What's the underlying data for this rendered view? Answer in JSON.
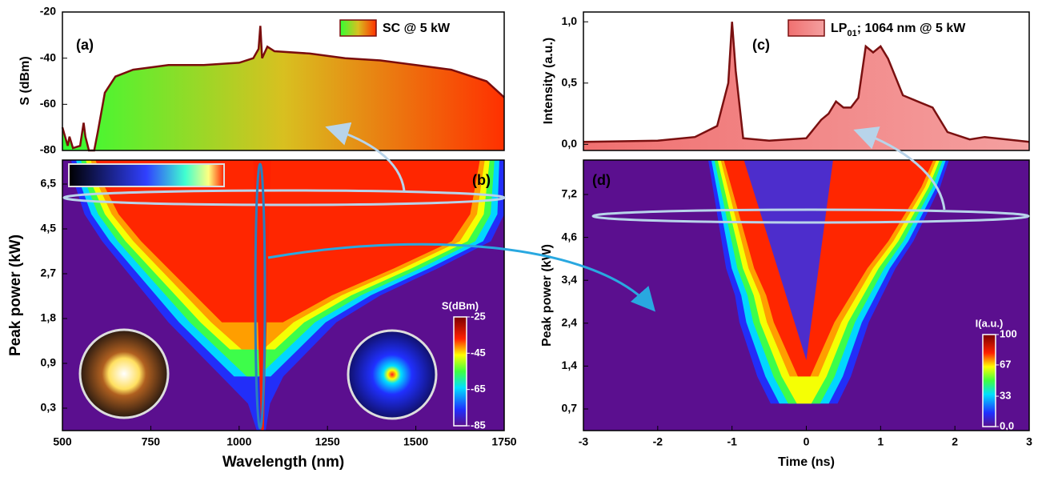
{
  "chart_data": [
    {
      "type": "area",
      "annotation": "(a)",
      "ylabel": "S (dBm)",
      "xlim": [
        500,
        1750
      ],
      "ylim": [
        -80,
        -20
      ],
      "yticks": [
        -80,
        -60,
        -40,
        -20
      ],
      "x": [
        500,
        515,
        520,
        530,
        550,
        560,
        565,
        575,
        590,
        600,
        620,
        650,
        700,
        800,
        900,
        1000,
        1040,
        1055,
        1060,
        1065,
        1080,
        1100,
        1200,
        1300,
        1400,
        1500,
        1600,
        1700,
        1750
      ],
      "series": [
        {
          "name": "SC @ 5 kW",
          "color": "#7a0d0d",
          "fill_colors": [
            "#33ff33",
            "#d8c020",
            "#ff3000"
          ],
          "values": [
            -70,
            -78,
            -74,
            -79,
            -78,
            -68,
            -74,
            -80,
            -80,
            -72,
            -55,
            -48,
            -45,
            -43,
            -43,
            -42,
            -40,
            -36,
            -26,
            -40,
            -35,
            -37,
            -38,
            -40,
            -41,
            -43,
            -45,
            -50,
            -57
          ]
        }
      ]
    },
    {
      "type": "heatmap",
      "annotation": "(b)",
      "xlabel": "Wavelength (nm)",
      "ylabel": "Peak power (kW)",
      "xlim": [
        500,
        1750
      ],
      "xticks": [
        500,
        750,
        1000,
        1250,
        1500,
        1750
      ],
      "y_categories": [
        "0,3",
        "0,9",
        "1,8",
        "2,7",
        "4,5",
        "6,5"
      ],
      "colorbar": {
        "label": "S(dBm)",
        "lim": [
          -85,
          -25
        ],
        "ticks": [
          -85,
          -65,
          -45,
          -25
        ]
      }
    },
    {
      "type": "area",
      "annotation": "(c)",
      "ylabel": "Intensity (a.u.)",
      "xlim": [
        -3,
        3
      ],
      "ylim": [
        -0.05,
        1.08
      ],
      "yticks": [
        {
          "value": 0,
          "label": "0,0"
        },
        {
          "value": 0.5,
          "label": "0,5"
        },
        {
          "value": 1,
          "label": "1,0"
        }
      ],
      "x": [
        -3,
        -2,
        -1.5,
        -1.2,
        -1.05,
        -1.0,
        -0.95,
        -0.85,
        -0.5,
        0,
        0.2,
        0.3,
        0.4,
        0.5,
        0.6,
        0.7,
        0.8,
        0.9,
        1.0,
        1.1,
        1.3,
        1.5,
        1.7,
        1.9,
        2.2,
        2.4,
        3
      ],
      "series": [
        {
          "name_parts": [
            "LP",
            "01",
            "; 1064 nm @ 5 kW"
          ],
          "color": "#7a1010",
          "fill_colors": [
            "#f07070",
            "#f4a0a0"
          ],
          "values": [
            0.02,
            0.03,
            0.06,
            0.15,
            0.5,
            1.0,
            0.6,
            0.05,
            0.03,
            0.05,
            0.2,
            0.25,
            0.35,
            0.3,
            0.3,
            0.38,
            0.8,
            0.75,
            0.8,
            0.7,
            0.4,
            0.35,
            0.3,
            0.1,
            0.04,
            0.06,
            0.02
          ]
        }
      ]
    },
    {
      "type": "heatmap",
      "annotation": "(d)",
      "xlabel": "Time (ns)",
      "ylabel": "Peak power (kW)",
      "xlim": [
        -3,
        3
      ],
      "xticks": [
        -3,
        -2,
        -1,
        0,
        1,
        2,
        3
      ],
      "y_categories": [
        "0,7",
        "1,4",
        "2,4",
        "3,4",
        "4,6",
        "7,2"
      ],
      "colorbar": {
        "label": "I(a.u.)",
        "lim": [
          0,
          100
        ],
        "ticks": [
          {
            "value": 0,
            "label": "0,0"
          },
          33,
          67,
          100
        ]
      }
    }
  ]
}
